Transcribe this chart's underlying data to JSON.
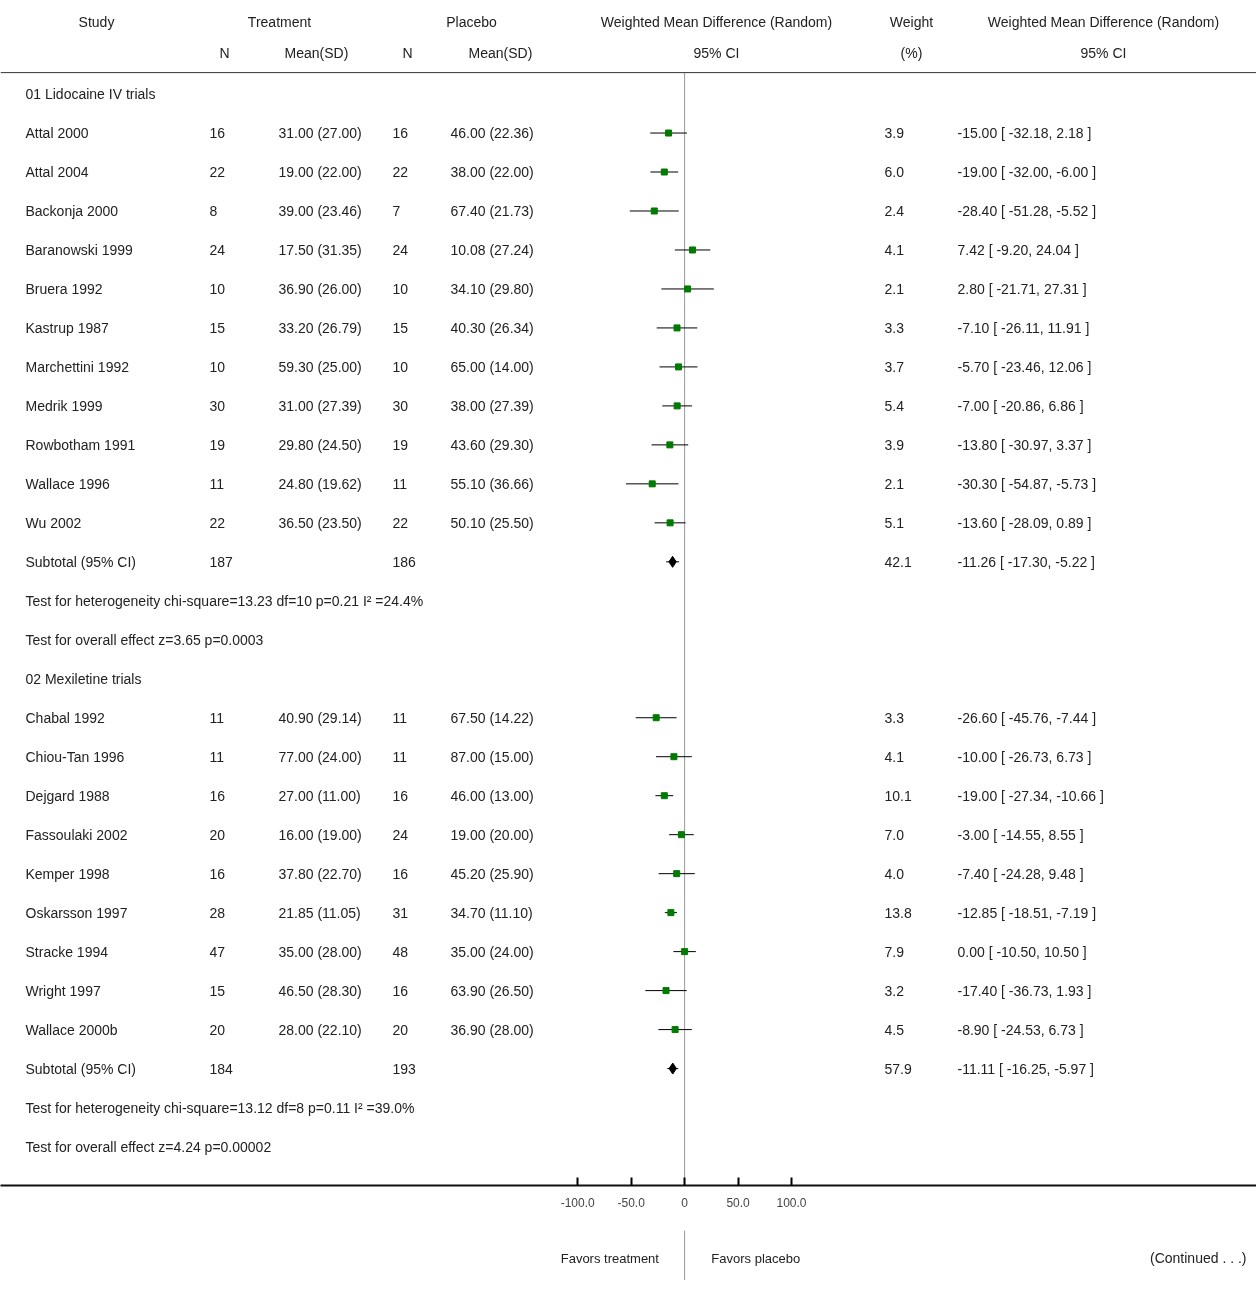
{
  "chart_data": {
    "type": "scatter",
    "orientation": "horizontal",
    "xlim": [
      -640,
      535
    ],
    "xticks": [
      {
        "value": -100,
        "label": "-100.0"
      },
      {
        "value": -50,
        "label": "-50.0"
      },
      {
        "value": 0,
        "label": "0"
      },
      {
        "value": 50,
        "label": "50.0"
      },
      {
        "value": 100,
        "label": "100.0"
      }
    ],
    "categories": [
      "01 Lidocaine IV trials",
      "Attal 2000",
      "Attal 2004",
      "Backonja 2000",
      "Baranowski 1999",
      "Bruera 1992",
      "Kastrup 1987",
      "Marchettini 1992",
      "Medrik 1999",
      "Rowbotham 1991",
      "Wallace 1996",
      "Wu 2002",
      "Subtotal (95% CI)",
      "Test for heterogeneity chi-square=13.23 df=10 p=0.21 I² =24.4%",
      "Test for overall effect z=3.65 p=0.0003",
      "02 Mexiletine trials",
      "Chabal 1992",
      "Chiou-Tan 1996",
      "Dejgard 1988",
      "Fassoulaki 2002",
      "Kemper 1998",
      "Oskarsson 1997",
      "Stracke 1994",
      "Wright 1997",
      "Wallace 2000b",
      "Subtotal (95% CI)",
      "Test for heterogeneity chi-square=13.12 df=8 p=0.11 I² =39.0%",
      "Test for overall effect z=4.24 p=0.00002"
    ],
    "series": [
      {
        "color": "#007a00",
        "marker": "square",
        "values": [
          null,
          -15.0,
          -19.0,
          -28.4,
          7.42,
          2.8,
          -7.1,
          -5.7,
          -7.0,
          -13.8,
          -30.3,
          -13.6,
          null,
          null,
          null,
          null,
          -26.6,
          -10.0,
          -19.0,
          -3.0,
          -7.4,
          -12.85,
          0.0,
          -17.4,
          -8.9,
          null,
          null,
          null
        ],
        "errors": [
          null,
          [
            -32.18,
            2.18
          ],
          [
            -32.0,
            -6.0
          ],
          [
            -51.28,
            -5.52
          ],
          [
            -9.2,
            24.04
          ],
          [
            -21.71,
            27.31
          ],
          [
            -26.11,
            11.91
          ],
          [
            -23.46,
            12.06
          ],
          [
            -20.86,
            6.86
          ],
          [
            -30.97,
            3.37
          ],
          [
            -54.87,
            -5.73
          ],
          [
            -28.09,
            0.89
          ],
          null,
          null,
          null,
          null,
          [
            -45.76,
            -7.44
          ],
          [
            -26.73,
            6.73
          ],
          [
            -27.34,
            -10.66
          ],
          [
            -14.55,
            8.55
          ],
          [
            -24.28,
            9.48
          ],
          [
            -18.51,
            -7.19
          ],
          [
            -10.5,
            10.5
          ],
          [
            -36.73,
            1.93
          ],
          [
            -24.53,
            6.73
          ],
          null,
          null,
          null
        ]
      },
      {
        "color": "#000000",
        "marker": "diamond",
        "values": [
          null,
          null,
          null,
          null,
          null,
          null,
          null,
          null,
          null,
          null,
          null,
          null,
          -11.26,
          null,
          null,
          null,
          null,
          null,
          null,
          null,
          null,
          null,
          null,
          null,
          null,
          -11.11,
          null,
          null
        ],
        "errors": [
          null,
          null,
          null,
          null,
          null,
          null,
          null,
          null,
          null,
          null,
          null,
          null,
          [
            -17.3,
            -5.22
          ],
          null,
          null,
          null,
          null,
          null,
          null,
          null,
          null,
          null,
          null,
          null,
          null,
          [
            -16.25,
            -5.97
          ],
          null,
          null
        ]
      }
    ],
    "ref_lines": [
      {
        "axis": "x",
        "value": 0,
        "color": "#999999"
      }
    ],
    "annotations": [
      "Study",
      "Treatment",
      "Placebo",
      "Weighted Mean Difference (Random)",
      "Weight",
      "Weighted Mean Difference (Random)",
      "N",
      "Mean(SD)",
      "N",
      "Mean(SD)",
      "95% CI",
      "(%)",
      "95% CI",
      "16",
      "31.00 (27.00)",
      "16",
      "46.00 (22.36)",
      "3.9",
      "-15.00 [ -32.18, 2.18 ]",
      "22",
      "19.00 (22.00)",
      "22",
      "38.00 (22.00)",
      "6.0",
      "-19.00 [ -32.00, -6.00 ]",
      "8",
      "39.00 (23.46)",
      "7",
      "67.40 (21.73)",
      "2.4",
      "-28.40 [ -51.28, -5.52 ]",
      "24",
      "17.50 (31.35)",
      "24",
      "10.08 (27.24)",
      "4.1",
      "7.42 [ -9.20, 24.04 ]",
      "10",
      "36.90 (26.00)",
      "10",
      "34.10 (29.80)",
      "2.1",
      "2.80 [ -21.71, 27.31 ]",
      "15",
      "33.20 (26.79)",
      "15",
      "40.30 (26.34)",
      "3.3",
      "-7.10 [ -26.11, 11.91 ]",
      "10",
      "59.30 (25.00)",
      "10",
      "65.00 (14.00)",
      "3.7",
      "-5.70 [ -23.46, 12.06 ]",
      "30",
      "31.00 (27.39)",
      "30",
      "38.00 (27.39)",
      "5.4",
      "-7.00 [ -20.86, 6.86 ]",
      "19",
      "29.80 (24.50)",
      "19",
      "43.60 (29.30)",
      "3.9",
      "-13.80 [ -30.97, 3.37 ]",
      "11",
      "24.80 (19.62)",
      "11",
      "55.10 (36.66)",
      "2.1",
      "-30.30 [ -54.87, -5.73 ]",
      "22",
      "36.50 (23.50)",
      "22",
      "50.10 (25.50)",
      "5.1",
      "-13.60 [ -28.09, 0.89 ]",
      "187",
      "186",
      "42.1",
      "-11.26 [ -17.30, -5.22 ]",
      "11",
      "40.90 (29.14)",
      "11",
      "67.50 (14.22)",
      "3.3",
      "-26.60 [ -45.76, -7.44 ]",
      "11",
      "77.00 (24.00)",
      "11",
      "87.00 (15.00)",
      "4.1",
      "-10.00 [ -26.73, 6.73 ]",
      "16",
      "27.00 (11.00)",
      "16",
      "46.00 (13.00)",
      "10.1",
      "-19.00 [ -27.34, -10.66 ]",
      "20",
      "16.00 (19.00)",
      "24",
      "19.00 (20.00)",
      "7.0",
      "-3.00 [ -14.55, 8.55 ]",
      "16",
      "37.80 (22.70)",
      "16",
      "45.20 (25.90)",
      "4.0",
      "-7.40 [ -24.28, 9.48 ]",
      "28",
      "21.85 (11.05)",
      "31",
      "34.70 (11.10)",
      "13.8",
      "-12.85 [ -18.51, -7.19 ]",
      "47",
      "35.00 (28.00)",
      "48",
      "35.00 (24.00)",
      "7.9",
      "0.00 [ -10.50, 10.50 ]",
      "15",
      "46.50 (28.30)",
      "16",
      "63.90 (26.50)",
      "3.2",
      "-17.40 [ -36.73, 1.93 ]",
      "20",
      "28.00 (22.10)",
      "20",
      "36.90 (28.00)",
      "4.5",
      "-8.90 [ -24.53, 6.73 ]",
      "184",
      "193",
      "57.9",
      "-11.11 [ -16.25, -5.97 ]",
      "Favors treatment",
      "Favors placebo",
      "(Continued . . .)"
    ]
  }
}
